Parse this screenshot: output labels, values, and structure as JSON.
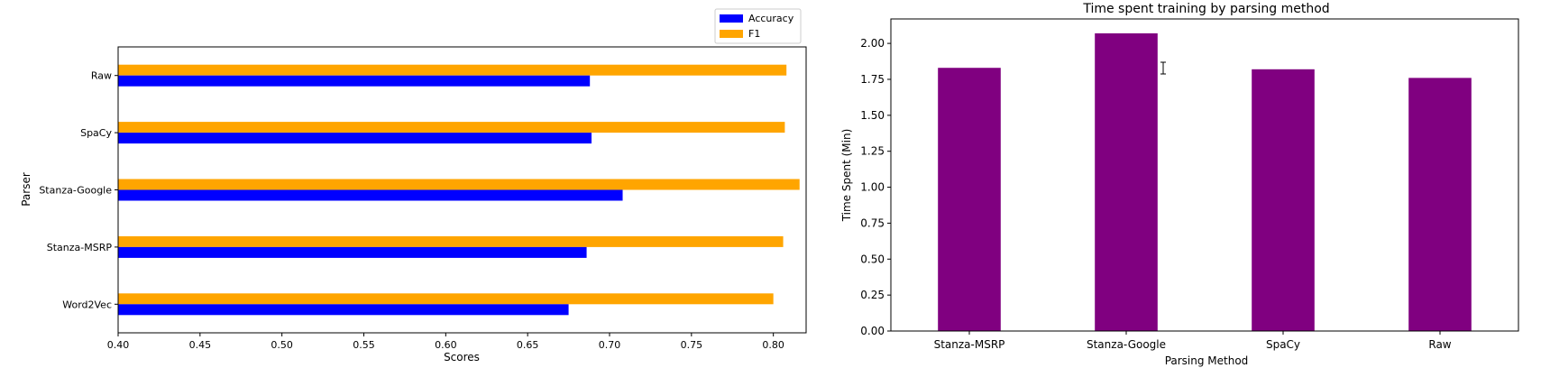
{
  "chart_data": [
    {
      "type": "bar",
      "orientation": "horizontal",
      "categories": [
        "Word2Vec",
        "Stanza-MSRP",
        "Stanza-Google",
        "SpaCy",
        "Raw"
      ],
      "series": [
        {
          "name": "Accuracy",
          "values": [
            0.675,
            0.686,
            0.708,
            0.689,
            0.688
          ]
        },
        {
          "name": "F1",
          "values": [
            0.8,
            0.806,
            0.816,
            0.807,
            0.808
          ]
        }
      ],
      "xlabel": "Scores",
      "ylabel": "Parser",
      "xlim": [
        0.4,
        0.82
      ],
      "xticks": [
        "0.40",
        "0.45",
        "0.50",
        "0.55",
        "0.60",
        "0.65",
        "0.70",
        "0.75",
        "0.80"
      ],
      "legend": "top-right",
      "colors": {
        "Accuracy": "#0000ff",
        "F1": "#ffa500"
      }
    },
    {
      "type": "bar",
      "title": "Time spent training by parsing method",
      "categories": [
        "Stanza-MSRP",
        "Stanza-Google",
        "SpaCy",
        "Raw"
      ],
      "values": [
        1.83,
        2.07,
        1.82,
        1.76
      ],
      "xlabel": "Parsing Method",
      "ylabel": "Time Spent (Min)",
      "ylim": [
        0,
        2.17
      ],
      "yticks": [
        "0.00",
        "0.25",
        "0.50",
        "0.75",
        "1.00",
        "1.25",
        "1.50",
        "1.75",
        "2.00"
      ],
      "color": "#800080"
    }
  ]
}
